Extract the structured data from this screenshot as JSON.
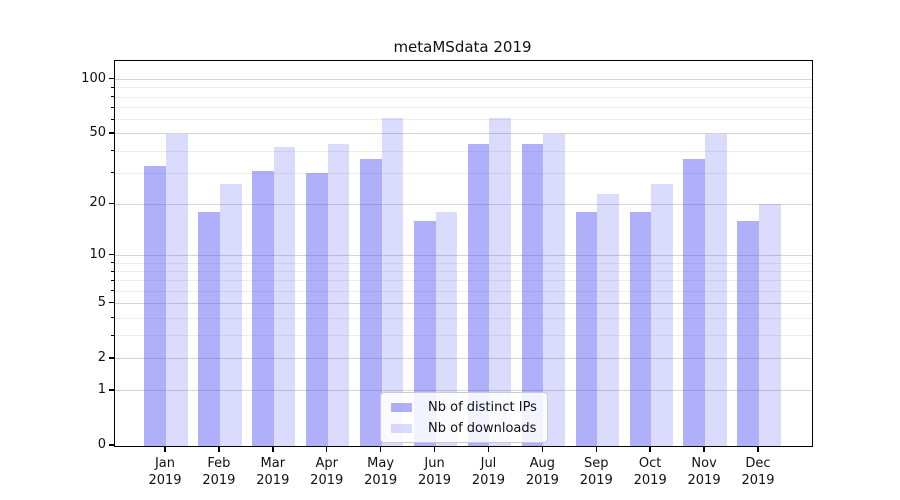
{
  "chart_data": {
    "type": "bar",
    "title": "metaMSdata 2019",
    "categories": [
      "Jan",
      "Feb",
      "Mar",
      "Apr",
      "May",
      "Jun",
      "Jul",
      "Aug",
      "Sep",
      "Oct",
      "Nov",
      "Dec"
    ],
    "x_tick_second_line": "2019",
    "series": [
      {
        "name": "Nb of distinct IPs",
        "color": "rgba(85,85,245,0.47)",
        "values": [
          33,
          18,
          31,
          30,
          36,
          16,
          44,
          44,
          18,
          18,
          36,
          16
        ]
      },
      {
        "name": "Nb of downloads",
        "color": "rgba(85,85,245,0.21)",
        "values": [
          50,
          26,
          42,
          44,
          61,
          18,
          61,
          50,
          23,
          26,
          50,
          20
        ]
      }
    ],
    "y_scale": "log1p",
    "y_axis_ticks": [
      0,
      1,
      2,
      5,
      10,
      20,
      50,
      100
    ],
    "y_minor_gridlines": [
      3,
      4,
      6,
      7,
      8,
      9,
      30,
      40,
      60,
      70,
      80,
      90
    ],
    "ylim": [
      0,
      126.6
    ],
    "grid": true,
    "legend": {
      "position": "bottom-center",
      "entries": [
        "Nb of distinct IPs",
        "Nb of downloads"
      ]
    },
    "colors": {
      "bar_distinct_ips": "rgba(85,85,245,0.47)",
      "bar_downloads": "rgba(85,85,245,0.21)",
      "major_grid": "#d4d4d4",
      "minor_grid": "#ededed",
      "axis": "#000000",
      "background": "#ffffff"
    }
  }
}
